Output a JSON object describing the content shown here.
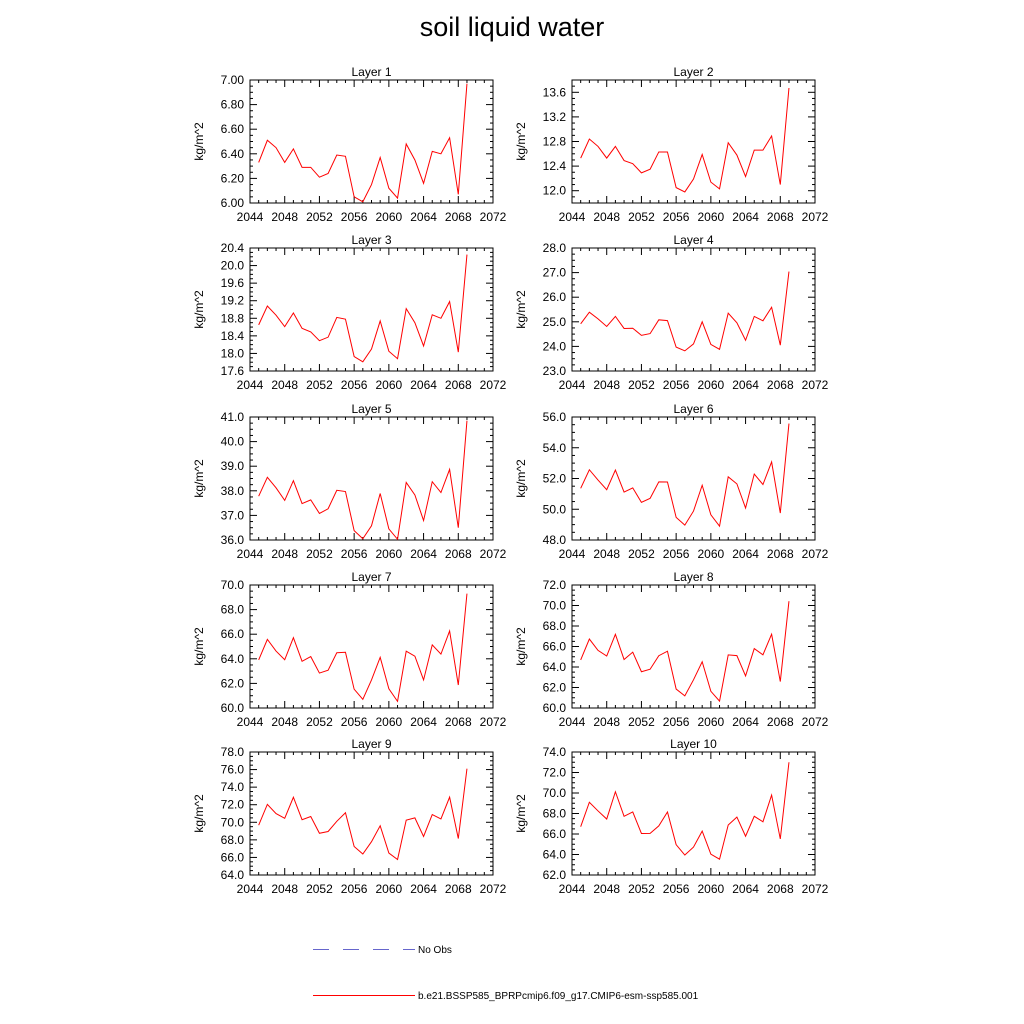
{
  "title": "soil liquid water",
  "colors": {
    "model": "#ff0000",
    "obs": "#6666cc",
    "axis": "#000000"
  },
  "legend": {
    "obs_label": "No Obs",
    "model_label": "b.e21.BSSP585_BPRPcmip6.f09_g17.CMIP6-esm-ssp585.001"
  },
  "chart_data": [
    {
      "type": "line",
      "title": "Layer 1",
      "ylabel": "kg/m^2",
      "xlim": [
        2044,
        2072
      ],
      "ylim": [
        6.0,
        7.0
      ],
      "xticks": [
        "2044",
        "2048",
        "2052",
        "2056",
        "2060",
        "2064",
        "2068",
        "2072"
      ],
      "yticks": [
        "6.00",
        "6.20",
        "6.40",
        "6.60",
        "6.80",
        "7.00"
      ],
      "x": [
        2045,
        2046,
        2047,
        2048,
        2049,
        2050,
        2051,
        2052,
        2053,
        2054,
        2055,
        2056,
        2057,
        2058,
        2059,
        2060,
        2061,
        2062,
        2063,
        2064,
        2065,
        2066,
        2067,
        2068,
        2069
      ],
      "series": [
        {
          "name": "b.e21.BSSP585_BPRPcmip6.f09_g17.CMIP6-esm-ssp585.001",
          "values": [
            6.33,
            6.51,
            6.45,
            6.33,
            6.44,
            6.29,
            6.29,
            6.21,
            6.24,
            6.39,
            6.38,
            6.05,
            6.01,
            6.15,
            6.37,
            6.12,
            6.04,
            6.48,
            6.35,
            6.16,
            6.42,
            6.4,
            6.53,
            6.07,
            6.97
          ]
        }
      ]
    },
    {
      "type": "line",
      "title": "Layer 2",
      "ylabel": "kg/m^2",
      "xlim": [
        2044,
        2072
      ],
      "ylim": [
        11.8,
        13.8
      ],
      "xticks": [
        "2044",
        "2048",
        "2052",
        "2056",
        "2060",
        "2064",
        "2068",
        "2072"
      ],
      "yticks": [
        "12.0",
        "12.4",
        "12.8",
        "13.2",
        "13.6"
      ],
      "x": [
        2045,
        2046,
        2047,
        2048,
        2049,
        2050,
        2051,
        2052,
        2053,
        2054,
        2055,
        2056,
        2057,
        2058,
        2059,
        2060,
        2061,
        2062,
        2063,
        2064,
        2065,
        2066,
        2067,
        2068,
        2069
      ],
      "series": [
        {
          "name": "b.e21.BSSP585_BPRPcmip6.f09_g17.CMIP6-esm-ssp585.001",
          "values": [
            12.53,
            12.84,
            12.72,
            12.53,
            12.72,
            12.49,
            12.44,
            12.29,
            12.35,
            12.63,
            12.63,
            12.05,
            11.98,
            12.19,
            12.59,
            12.14,
            12.03,
            12.78,
            12.58,
            12.23,
            12.66,
            12.66,
            12.89,
            12.1,
            13.67
          ]
        }
      ]
    },
    {
      "type": "line",
      "title": "Layer 3",
      "ylabel": "kg/m^2",
      "xlim": [
        2044,
        2072
      ],
      "ylim": [
        17.6,
        20.4
      ],
      "xticks": [
        "2044",
        "2048",
        "2052",
        "2056",
        "2060",
        "2064",
        "2068",
        "2072"
      ],
      "yticks": [
        "17.6",
        "18.0",
        "18.4",
        "18.8",
        "19.2",
        "19.6",
        "20.0",
        "20.4"
      ],
      "x": [
        2045,
        2046,
        2047,
        2048,
        2049,
        2050,
        2051,
        2052,
        2053,
        2054,
        2055,
        2056,
        2057,
        2058,
        2059,
        2060,
        2061,
        2062,
        2063,
        2064,
        2065,
        2066,
        2067,
        2068,
        2069
      ],
      "series": [
        {
          "name": "b.e21.BSSP585_BPRPcmip6.f09_g17.CMIP6-esm-ssp585.001",
          "values": [
            18.65,
            19.08,
            18.87,
            18.61,
            18.92,
            18.57,
            18.49,
            18.29,
            18.37,
            18.82,
            18.78,
            17.93,
            17.81,
            18.1,
            18.74,
            18.05,
            17.88,
            19.02,
            18.7,
            18.17,
            18.88,
            18.8,
            19.18,
            18.03,
            20.25
          ]
        }
      ]
    },
    {
      "type": "line",
      "title": "Layer 4",
      "ylabel": "kg/m^2",
      "xlim": [
        2044,
        2072
      ],
      "ylim": [
        23.0,
        28.0
      ],
      "xticks": [
        "2044",
        "2048",
        "2052",
        "2056",
        "2060",
        "2064",
        "2068",
        "2072"
      ],
      "yticks": [
        "23.0",
        "24.0",
        "25.0",
        "26.0",
        "27.0",
        "28.0"
      ],
      "x": [
        2045,
        2046,
        2047,
        2048,
        2049,
        2050,
        2051,
        2052,
        2053,
        2054,
        2055,
        2056,
        2057,
        2058,
        2059,
        2060,
        2061,
        2062,
        2063,
        2064,
        2065,
        2066,
        2067,
        2068,
        2069
      ],
      "series": [
        {
          "name": "b.e21.BSSP585_BPRPcmip6.f09_g17.CMIP6-esm-ssp585.001",
          "values": [
            24.92,
            25.39,
            25.12,
            24.81,
            25.22,
            24.73,
            24.74,
            24.45,
            24.52,
            25.08,
            25.05,
            23.97,
            23.82,
            24.1,
            25.0,
            24.08,
            23.88,
            25.35,
            24.96,
            24.25,
            25.22,
            25.04,
            25.59,
            24.05,
            27.04
          ]
        }
      ]
    },
    {
      "type": "line",
      "title": "Layer 5",
      "ylabel": "kg/m^2",
      "xlim": [
        2044,
        2072
      ],
      "ylim": [
        36.0,
        41.0
      ],
      "xticks": [
        "2044",
        "2048",
        "2052",
        "2056",
        "2060",
        "2064",
        "2068",
        "2072"
      ],
      "yticks": [
        "36.0",
        "37.0",
        "38.0",
        "39.0",
        "40.0",
        "41.0"
      ],
      "x": [
        2045,
        2046,
        2047,
        2048,
        2049,
        2050,
        2051,
        2052,
        2053,
        2054,
        2055,
        2056,
        2057,
        2058,
        2059,
        2060,
        2061,
        2062,
        2063,
        2064,
        2065,
        2066,
        2067,
        2068,
        2069
      ],
      "series": [
        {
          "name": "b.e21.BSSP585_BPRPcmip6.f09_g17.CMIP6-esm-ssp585.001",
          "values": [
            37.78,
            38.55,
            38.12,
            37.61,
            38.41,
            37.48,
            37.63,
            37.08,
            37.27,
            38.02,
            37.97,
            36.38,
            36.05,
            36.58,
            37.89,
            36.45,
            36.03,
            38.34,
            37.83,
            36.79,
            38.37,
            37.93,
            38.87,
            36.5,
            40.85
          ]
        }
      ]
    },
    {
      "type": "line",
      "title": "Layer 6",
      "ylabel": "kg/m^2",
      "xlim": [
        2044,
        2072
      ],
      "ylim": [
        48.0,
        56.0
      ],
      "xticks": [
        "2044",
        "2048",
        "2052",
        "2056",
        "2060",
        "2064",
        "2068",
        "2072"
      ],
      "yticks": [
        "48.0",
        "50.0",
        "52.0",
        "54.0",
        "56.0"
      ],
      "x": [
        2045,
        2046,
        2047,
        2048,
        2049,
        2050,
        2051,
        2052,
        2053,
        2054,
        2055,
        2056,
        2057,
        2058,
        2059,
        2060,
        2061,
        2062,
        2063,
        2064,
        2065,
        2066,
        2067,
        2068,
        2069
      ],
      "series": [
        {
          "name": "b.e21.BSSP585_BPRPcmip6.f09_g17.CMIP6-esm-ssp585.001",
          "values": [
            51.36,
            52.57,
            51.9,
            51.27,
            52.55,
            51.12,
            51.39,
            50.45,
            50.71,
            51.78,
            51.77,
            49.47,
            48.97,
            49.88,
            51.56,
            49.64,
            48.9,
            52.11,
            51.65,
            50.08,
            52.29,
            51.61,
            53.08,
            49.75,
            55.57
          ]
        }
      ]
    },
    {
      "type": "line",
      "title": "Layer 7",
      "ylabel": "kg/m^2",
      "xlim": [
        2044,
        2072
      ],
      "ylim": [
        60.0,
        70.0
      ],
      "xticks": [
        "2044",
        "2048",
        "2052",
        "2056",
        "2060",
        "2064",
        "2068",
        "2072"
      ],
      "yticks": [
        "60.0",
        "62.0",
        "64.0",
        "66.0",
        "68.0",
        "70.0"
      ],
      "x": [
        2045,
        2046,
        2047,
        2048,
        2049,
        2050,
        2051,
        2052,
        2053,
        2054,
        2055,
        2056,
        2057,
        2058,
        2059,
        2060,
        2061,
        2062,
        2063,
        2064,
        2065,
        2066,
        2067,
        2068,
        2069
      ],
      "series": [
        {
          "name": "b.e21.BSSP585_BPRPcmip6.f09_g17.CMIP6-esm-ssp585.001",
          "values": [
            63.91,
            65.58,
            64.63,
            63.92,
            65.72,
            63.8,
            64.18,
            62.84,
            63.07,
            64.49,
            64.53,
            61.53,
            60.71,
            62.28,
            64.12,
            61.56,
            60.54,
            64.62,
            64.21,
            62.28,
            65.13,
            64.38,
            66.26,
            61.87,
            69.3
          ]
        }
      ]
    },
    {
      "type": "line",
      "title": "Layer 8",
      "ylabel": "kg/m^2",
      "xlim": [
        2044,
        2072
      ],
      "ylim": [
        60.0,
        72.0
      ],
      "xticks": [
        "2044",
        "2048",
        "2052",
        "2056",
        "2060",
        "2064",
        "2068",
        "2072"
      ],
      "yticks": [
        "60.0",
        "62.0",
        "64.0",
        "66.0",
        "68.0",
        "70.0",
        "72.0"
      ],
      "x": [
        2045,
        2046,
        2047,
        2048,
        2049,
        2050,
        2051,
        2052,
        2053,
        2054,
        2055,
        2056,
        2057,
        2058,
        2059,
        2060,
        2061,
        2062,
        2063,
        2064,
        2065,
        2066,
        2067,
        2068,
        2069
      ],
      "series": [
        {
          "name": "b.e21.BSSP585_BPRPcmip6.f09_g17.CMIP6-esm-ssp585.001",
          "values": [
            64.69,
            66.73,
            65.62,
            65.07,
            67.19,
            64.73,
            65.45,
            63.54,
            63.78,
            65.1,
            65.54,
            61.85,
            61.18,
            62.75,
            64.51,
            61.63,
            60.67,
            65.18,
            65.11,
            63.13,
            65.8,
            65.19,
            67.2,
            62.58,
            70.42
          ]
        }
      ]
    },
    {
      "type": "line",
      "title": "Layer 9",
      "ylabel": "kg/m^2",
      "xlim": [
        2044,
        2072
      ],
      "ylim": [
        64.0,
        78.0
      ],
      "xticks": [
        "2044",
        "2048",
        "2052",
        "2056",
        "2060",
        "2064",
        "2068",
        "2072"
      ],
      "yticks": [
        "64.0",
        "66.0",
        "68.0",
        "70.0",
        "72.0",
        "74.0",
        "76.0",
        "78.0"
      ],
      "x": [
        2045,
        2046,
        2047,
        2048,
        2049,
        2050,
        2051,
        2052,
        2053,
        2054,
        2055,
        2056,
        2057,
        2058,
        2059,
        2060,
        2061,
        2062,
        2063,
        2064,
        2065,
        2066,
        2067,
        2068,
        2069
      ],
      "series": [
        {
          "name": "b.e21.BSSP585_BPRPcmip6.f09_g17.CMIP6-esm-ssp585.001",
          "values": [
            69.67,
            72.04,
            70.99,
            70.45,
            72.85,
            70.29,
            70.66,
            68.75,
            68.95,
            70.11,
            71.09,
            67.25,
            66.39,
            67.79,
            69.6,
            66.5,
            65.76,
            70.24,
            70.5,
            68.39,
            70.88,
            70.38,
            72.86,
            68.15,
            76.1
          ]
        }
      ]
    },
    {
      "type": "line",
      "title": "Layer 10",
      "ylabel": "kg/m^2",
      "xlim": [
        2044,
        2072
      ],
      "ylim": [
        62.0,
        74.0
      ],
      "xticks": [
        "2044",
        "2048",
        "2052",
        "2056",
        "2060",
        "2064",
        "2068",
        "2072"
      ],
      "yticks": [
        "62.0",
        "64.0",
        "66.0",
        "68.0",
        "70.0",
        "72.0",
        "74.0"
      ],
      "x": [
        2045,
        2046,
        2047,
        2048,
        2049,
        2050,
        2051,
        2052,
        2053,
        2054,
        2055,
        2056,
        2057,
        2058,
        2059,
        2060,
        2061,
        2062,
        2063,
        2064,
        2065,
        2066,
        2067,
        2068,
        2069
      ],
      "series": [
        {
          "name": "b.e21.BSSP585_BPRPcmip6.f09_g17.CMIP6-esm-ssp585.001",
          "values": [
            66.71,
            69.1,
            68.25,
            67.46,
            70.12,
            67.73,
            68.15,
            66.05,
            66.06,
            66.79,
            68.15,
            64.96,
            63.95,
            64.72,
            66.28,
            64.03,
            63.54,
            66.88,
            67.65,
            65.78,
            67.73,
            67.19,
            69.8,
            65.52,
            73.0
          ]
        }
      ]
    }
  ]
}
